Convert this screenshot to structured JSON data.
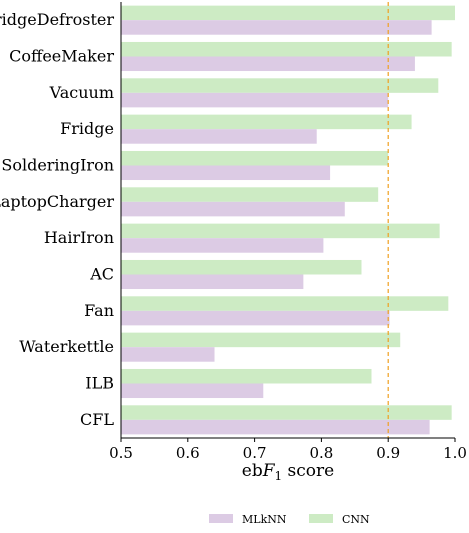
{
  "chart_data": {
    "type": "bar",
    "orientation": "horizontal",
    "categories": [
      "FridgeDefroster",
      "CoffeeMaker",
      "Vacuum",
      "Fridge",
      "SolderingIron",
      "LaptopCharger",
      "HairIron",
      "AC",
      "Fan",
      "Waterkettle",
      "ILB",
      "CFL"
    ],
    "series": [
      {
        "name": "CNN",
        "color": "#cdebc4",
        "values": [
          1.0,
          0.995,
          0.975,
          0.935,
          0.9,
          0.885,
          0.977,
          0.86,
          0.99,
          0.918,
          0.875,
          0.995
        ]
      },
      {
        "name": "MLkNN",
        "color": "#dccbe4",
        "values": [
          0.965,
          0.94,
          0.9,
          0.793,
          0.813,
          0.835,
          0.803,
          0.773,
          0.902,
          0.64,
          0.713,
          0.962
        ]
      }
    ],
    "xlabel_prefix": "eb",
    "xlabel_var": "F",
    "xlabel_sub": "1",
    "xlabel_suffix": " score",
    "xticks": [
      "0.5",
      "0.6",
      "0.7",
      "0.8",
      "0.9",
      "1.0"
    ],
    "xlim": [
      0.5,
      1.0
    ],
    "reference_line": {
      "value": 0.9,
      "style": "dashed",
      "color": "#f0a020"
    },
    "legend": {
      "placement": "bottom-center",
      "order": [
        "MLkNN",
        "CNN"
      ]
    },
    "grid": false
  }
}
